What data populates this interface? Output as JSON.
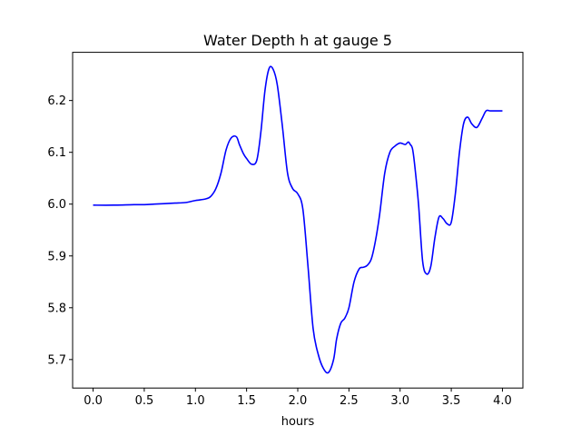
{
  "chart_data": {
    "type": "line",
    "title": "Water Depth h at gauge 5",
    "xlabel": "hours",
    "ylabel": "",
    "xlim": [
      -0.2,
      4.2
    ],
    "ylim": [
      5.645,
      6.293
    ],
    "grid": false,
    "xticks": [
      0.0,
      0.5,
      1.0,
      1.5,
      2.0,
      2.5,
      3.0,
      3.5,
      4.0
    ],
    "xtick_labels": [
      "0.0",
      "0.5",
      "1.0",
      "1.5",
      "2.0",
      "2.5",
      "3.0",
      "3.5",
      "4.0"
    ],
    "yticks": [
      5.7,
      5.8,
      5.9,
      6.0,
      6.1,
      6.2
    ],
    "ytick_labels": [
      "5.7",
      "5.8",
      "5.9",
      "6.0",
      "6.1",
      "6.2"
    ],
    "series": [
      {
        "color": "#0000ff",
        "x": [
          0.0,
          0.2,
          0.4,
          0.5,
          0.6,
          0.7,
          0.8,
          0.9,
          1.0,
          1.1,
          1.15,
          1.2,
          1.25,
          1.3,
          1.35,
          1.4,
          1.43,
          1.47,
          1.5,
          1.55,
          1.6,
          1.64,
          1.68,
          1.72,
          1.76,
          1.8,
          1.85,
          1.9,
          1.95,
          2.0,
          2.05,
          2.1,
          2.15,
          2.2,
          2.25,
          2.3,
          2.35,
          2.38,
          2.42,
          2.46,
          2.5,
          2.55,
          2.6,
          2.64,
          2.68,
          2.72,
          2.76,
          2.8,
          2.85,
          2.9,
          2.95,
          3.0,
          3.05,
          3.08,
          3.1,
          3.12,
          3.14,
          3.18,
          3.22,
          3.26,
          3.3,
          3.34,
          3.38,
          3.42,
          3.46,
          3.5,
          3.54,
          3.58,
          3.62,
          3.66,
          3.7,
          3.75,
          3.8,
          3.84,
          3.88,
          3.92,
          3.96,
          4.0
        ],
        "y": [
          5.998,
          5.998,
          5.999,
          5.999,
          6.0,
          6.001,
          6.002,
          6.003,
          6.007,
          6.01,
          6.015,
          6.03,
          6.06,
          6.105,
          6.128,
          6.13,
          6.115,
          6.097,
          6.088,
          6.077,
          6.085,
          6.14,
          6.22,
          6.262,
          6.26,
          6.23,
          6.15,
          6.06,
          6.03,
          6.02,
          5.99,
          5.88,
          5.76,
          5.71,
          5.683,
          5.675,
          5.7,
          5.74,
          5.77,
          5.78,
          5.8,
          5.85,
          5.875,
          5.878,
          5.882,
          5.895,
          5.93,
          5.98,
          6.06,
          6.1,
          6.112,
          6.118,
          6.115,
          6.12,
          6.115,
          6.108,
          6.08,
          6.0,
          5.89,
          5.865,
          5.88,
          5.935,
          5.975,
          5.972,
          5.962,
          5.965,
          6.02,
          6.1,
          6.155,
          6.168,
          6.155,
          6.148,
          6.165,
          6.18,
          6.18,
          6.18,
          6.18,
          6.18
        ]
      }
    ]
  }
}
